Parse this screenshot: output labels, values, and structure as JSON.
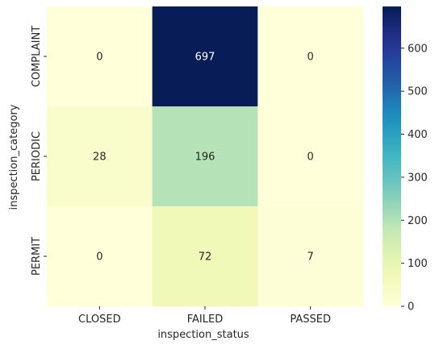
{
  "chart_data": {
    "type": "heatmap",
    "title": "",
    "xlabel": "inspection_status",
    "ylabel": "inspection_category",
    "x_categories": [
      "CLOSED",
      "FAILED",
      "PASSED"
    ],
    "y_categories": [
      "COMPLAINT",
      "PERIODIC",
      "PERMIT"
    ],
    "values": [
      [
        0,
        697,
        0
      ],
      [
        28,
        196,
        0
      ],
      [
        0,
        72,
        7
      ]
    ],
    "colormap": "YlGnBu",
    "vmin": 0,
    "vmax": 697,
    "colorbar_ticks": [
      0,
      100,
      200,
      300,
      400,
      500,
      600
    ],
    "annotation_dark_color": "#262626",
    "annotation_light_color": "#ffffff"
  }
}
